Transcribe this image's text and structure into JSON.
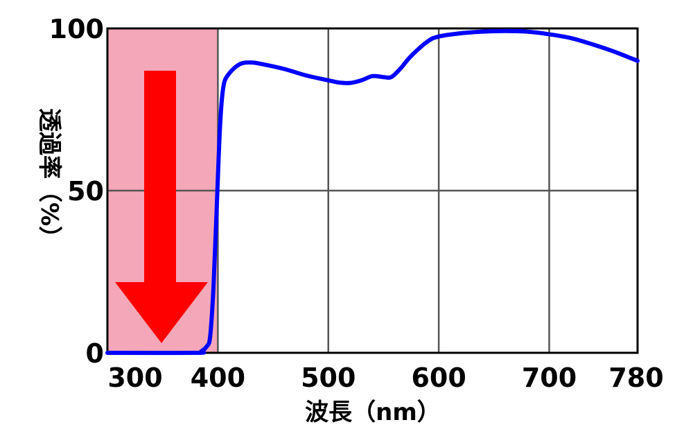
{
  "chart_data": {
    "type": "line",
    "xlabel": "波長（nm）",
    "ylabel": "透過率（%）",
    "xlim": [
      300,
      780
    ],
    "ylim": [
      0,
      100
    ],
    "x_ticks": [
      300,
      400,
      500,
      600,
      700,
      780
    ],
    "y_ticks": [
      0,
      50,
      100
    ],
    "grid": true,
    "highlight_region": {
      "x_range": [
        300,
        400
      ],
      "color": "#f4a7b9"
    },
    "arrow": {
      "direction": "down",
      "color": "#ff0000"
    },
    "series": [
      {
        "color": "#0000ff",
        "points": [
          [
            300,
            0
          ],
          [
            380,
            0
          ],
          [
            385,
            0.5
          ],
          [
            390,
            2
          ],
          [
            393,
            5
          ],
          [
            396,
            20
          ],
          [
            399,
            45
          ],
          [
            402,
            70
          ],
          [
            405,
            82
          ],
          [
            410,
            86
          ],
          [
            420,
            89
          ],
          [
            430,
            89.5
          ],
          [
            440,
            89
          ],
          [
            460,
            87.5
          ],
          [
            480,
            85.5
          ],
          [
            500,
            84
          ],
          [
            510,
            83.3
          ],
          [
            520,
            83.2
          ],
          [
            530,
            84
          ],
          [
            540,
            85.3
          ],
          [
            550,
            85
          ],
          [
            557,
            85
          ],
          [
            565,
            87.5
          ],
          [
            575,
            91.5
          ],
          [
            590,
            96
          ],
          [
            600,
            97.5
          ],
          [
            620,
            98.5
          ],
          [
            640,
            99
          ],
          [
            660,
            99.2
          ],
          [
            680,
            99
          ],
          [
            700,
            98.2
          ],
          [
            720,
            97
          ],
          [
            740,
            95
          ],
          [
            760,
            92.7
          ],
          [
            780,
            90
          ]
        ]
      }
    ]
  }
}
